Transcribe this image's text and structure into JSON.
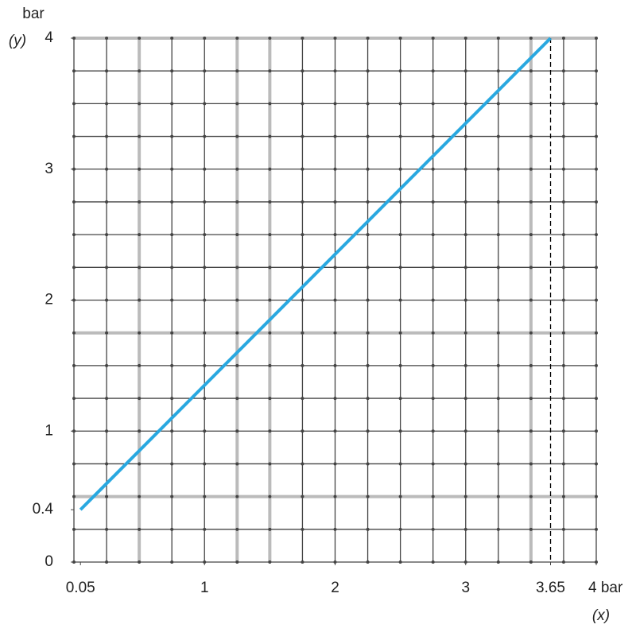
{
  "chart_data": {
    "type": "line",
    "x_label": "(x)",
    "y_label": "(y)",
    "y_unit": "bar",
    "series": [
      {
        "name": null,
        "color": "#29a8e0",
        "x": [
          0.05,
          3.65
        ],
        "values": [
          0.4,
          4
        ]
      }
    ],
    "xlim": [
      0,
      4
    ],
    "ylim": [
      0,
      4
    ],
    "xticks": [
      0.05,
      1,
      2,
      3,
      3.65,
      {
        "value": 4,
        "label": "4 bar"
      }
    ],
    "yticks": [
      0,
      0.4,
      1,
      2,
      3,
      4
    ],
    "grid": true,
    "xgrid": [
      0,
      0.25,
      0.5,
      0.75,
      1,
      1.25,
      1.5,
      1.75,
      2,
      2.25,
      2.5,
      2.75,
      3,
      3.25,
      3.5,
      3.75,
      4
    ],
    "ygrid": [
      0,
      0.25,
      0.5,
      0.75,
      1,
      1.25,
      1.5,
      1.75,
      2,
      2.25,
      2.5,
      2.75,
      3,
      3.25,
      3.5,
      3.75,
      4
    ],
    "highlight_xgrid": [
      0.5,
      1.25,
      1.5,
      3.5
    ],
    "highlight_ygrid": [
      0.5,
      1.75,
      4
    ],
    "guide_x": 3.65
  }
}
